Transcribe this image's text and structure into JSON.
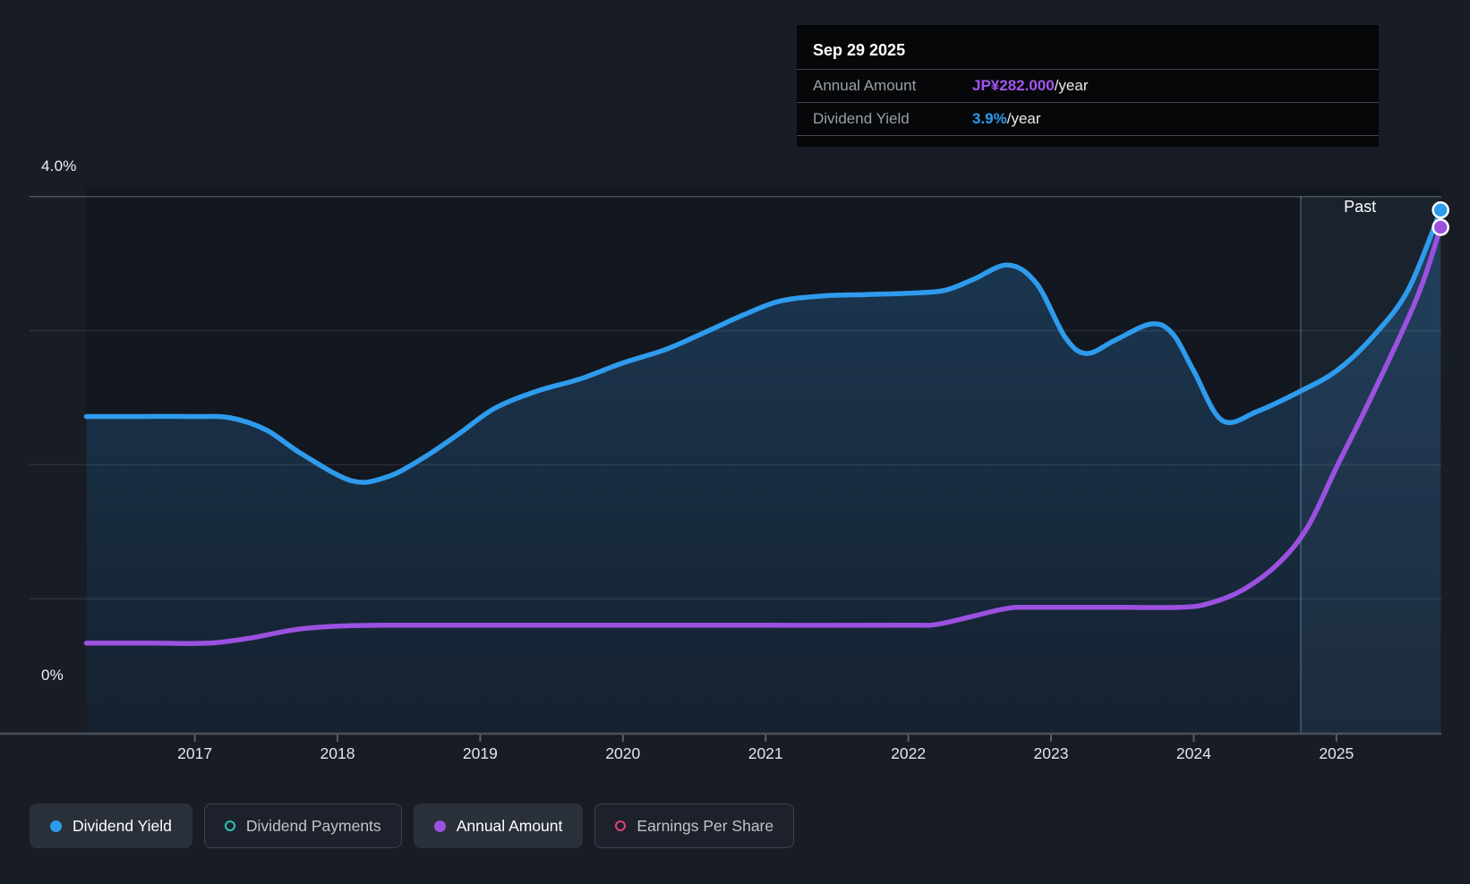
{
  "app": {
    "background_color": "#181C25"
  },
  "tooltip": {
    "date": "Sep 29 2025",
    "rows": [
      {
        "label": "Annual Amount",
        "value": "JP¥282.000",
        "suffix": "/year",
        "value_color": "#A455F2"
      },
      {
        "label": "Dividend Yield",
        "value": "3.9%",
        "suffix": "/year",
        "value_color": "#2E9BED"
      }
    ]
  },
  "y_axis": {
    "top_label": "4.0%",
    "bottom_label": "0%"
  },
  "x_axis": {
    "years": [
      "2017",
      "2018",
      "2019",
      "2020",
      "2021",
      "2022",
      "2023",
      "2024",
      "2025"
    ]
  },
  "annotations": {
    "past_label": "Past"
  },
  "legend": {
    "items": [
      {
        "label": "Dividend Yield",
        "color": "#2E9BED",
        "marker": "filled",
        "active": true
      },
      {
        "label": "Dividend Payments",
        "color": "#2EC4B0",
        "marker": "outline",
        "active": false
      },
      {
        "label": "Annual Amount",
        "color": "#9B51E0",
        "marker": "filled",
        "active": true
      },
      {
        "label": "Earnings Per Share",
        "color": "#E0407E",
        "marker": "outline",
        "active": false
      }
    ]
  },
  "chart_data": {
    "type": "line",
    "title": "Dividend yield and annual dividend amount history",
    "x_range": [
      2016.24,
      2025.73
    ],
    "x_tick_years": [
      2017,
      2018,
      2019,
      2020,
      2021,
      2022,
      2023,
      2024,
      2025
    ],
    "percent_axis": {
      "min": 0,
      "max": 4.0,
      "gridline_values": [
        4,
        3,
        2,
        1,
        0
      ],
      "top_label": "4.0%",
      "bottom_label": "0%"
    },
    "amount_axis": {
      "min": 0,
      "unit": "JP¥"
    },
    "past_divider_year": 2024.75,
    "legend_position": "bottom",
    "grid": true,
    "series": [
      {
        "name": "Dividend Yield",
        "color": "#2E9BED",
        "unit": "%",
        "scale": "percent",
        "current_value": 3.9,
        "area_fill": true,
        "points": [
          [
            2016.24,
            2.36
          ],
          [
            2016.6,
            2.36
          ],
          [
            2017.0,
            2.36
          ],
          [
            2017.25,
            2.35
          ],
          [
            2017.5,
            2.26
          ],
          [
            2017.75,
            2.08
          ],
          [
            2018.1,
            1.88
          ],
          [
            2018.35,
            1.91
          ],
          [
            2018.6,
            2.05
          ],
          [
            2018.85,
            2.23
          ],
          [
            2019.1,
            2.42
          ],
          [
            2019.4,
            2.55
          ],
          [
            2019.7,
            2.64
          ],
          [
            2020.0,
            2.76
          ],
          [
            2020.3,
            2.86
          ],
          [
            2020.6,
            3.0
          ],
          [
            2020.85,
            3.12
          ],
          [
            2021.1,
            3.22
          ],
          [
            2021.4,
            3.26
          ],
          [
            2021.7,
            3.27
          ],
          [
            2022.0,
            3.28
          ],
          [
            2022.25,
            3.3
          ],
          [
            2022.45,
            3.38
          ],
          [
            2022.7,
            3.49
          ],
          [
            2022.9,
            3.35
          ],
          [
            2023.1,
            2.95
          ],
          [
            2023.25,
            2.83
          ],
          [
            2023.45,
            2.93
          ],
          [
            2023.7,
            3.05
          ],
          [
            2023.85,
            2.98
          ],
          [
            2024.0,
            2.7
          ],
          [
            2024.2,
            2.33
          ],
          [
            2024.45,
            2.4
          ],
          [
            2024.75,
            2.55
          ],
          [
            2025.0,
            2.7
          ],
          [
            2025.25,
            2.95
          ],
          [
            2025.5,
            3.3
          ],
          [
            2025.73,
            3.9
          ]
        ]
      },
      {
        "name": "Annual Amount",
        "color": "#9B51E0",
        "unit": "JP¥/year",
        "scale": "amount",
        "current_value": 282,
        "area_fill": false,
        "points": [
          [
            2016.24,
            50
          ],
          [
            2016.7,
            50
          ],
          [
            2017.1,
            50
          ],
          [
            2017.4,
            53
          ],
          [
            2017.7,
            57.5
          ],
          [
            2018.0,
            59.5
          ],
          [
            2018.3,
            60
          ],
          [
            2019.0,
            60
          ],
          [
            2020.0,
            60
          ],
          [
            2021.0,
            60
          ],
          [
            2022.0,
            60
          ],
          [
            2022.2,
            60.5
          ],
          [
            2022.45,
            65
          ],
          [
            2022.7,
            69.5
          ],
          [
            2022.9,
            70
          ],
          [
            2023.5,
            70
          ],
          [
            2023.9,
            70
          ],
          [
            2024.1,
            72
          ],
          [
            2024.35,
            80
          ],
          [
            2024.6,
            95
          ],
          [
            2024.8,
            115
          ],
          [
            2025.0,
            148
          ],
          [
            2025.2,
            180
          ],
          [
            2025.45,
            222
          ],
          [
            2025.6,
            250
          ],
          [
            2025.73,
            282
          ]
        ]
      }
    ]
  }
}
